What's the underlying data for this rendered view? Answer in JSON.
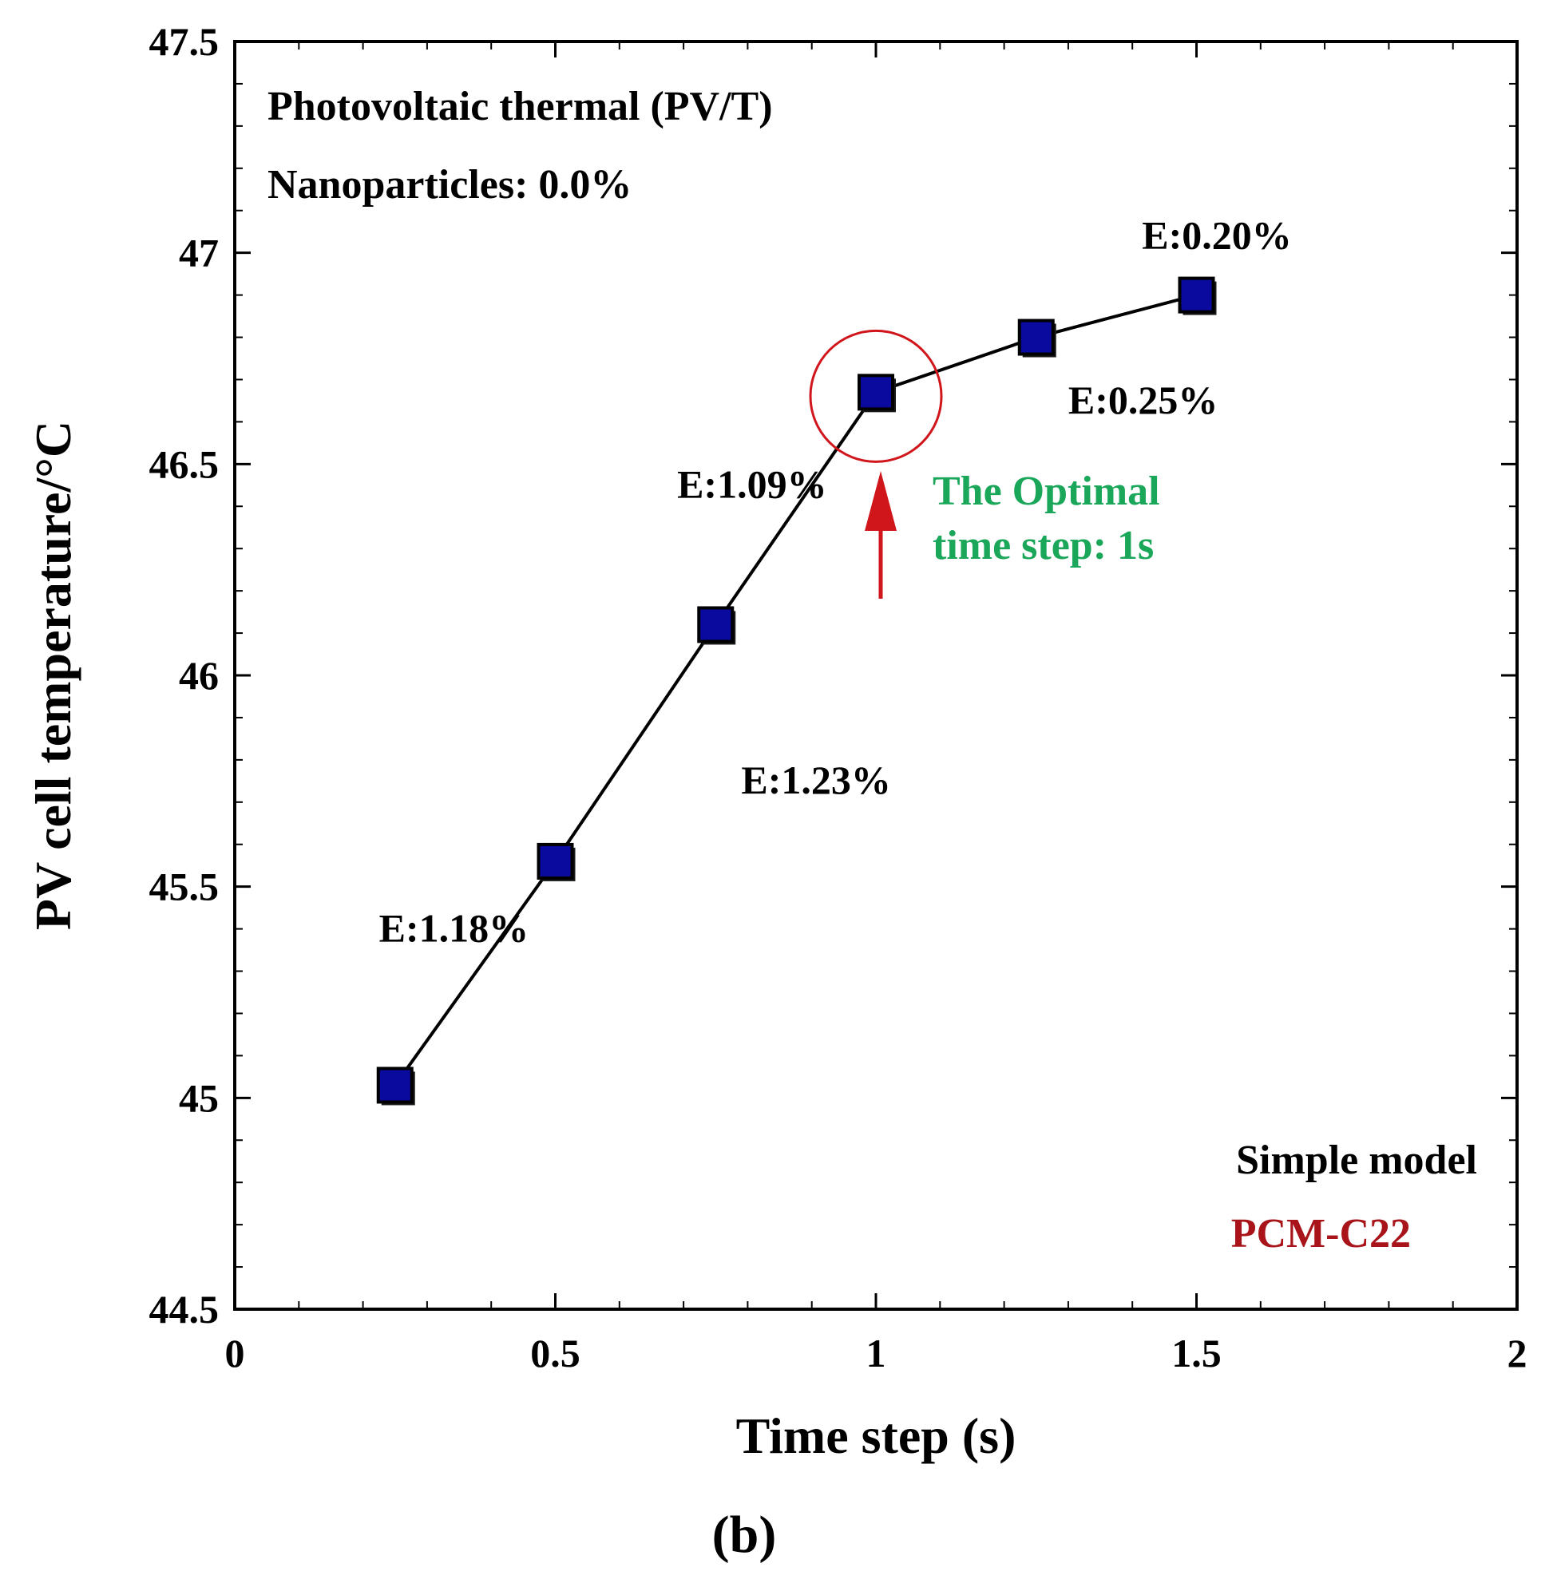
{
  "chart_data": {
    "type": "line",
    "title": "",
    "xlabel": "Time step (s)",
    "ylabel": "PV cell temperature/°C",
    "xlim": [
      0,
      2
    ],
    "ylim": [
      44.5,
      47.5
    ],
    "x_ticks": [
      "0",
      "0.5",
      "1",
      "1.5",
      "2"
    ],
    "y_ticks": [
      "44.5",
      "45",
      "45.5",
      "46",
      "46.5",
      "47",
      "47.5"
    ],
    "grid": false,
    "series": [
      {
        "name": "PV cell temperature",
        "x": [
          0.25,
          0.5,
          0.75,
          1.0,
          1.25,
          1.5
        ],
        "y": [
          45.03,
          45.56,
          46.12,
          46.67,
          46.8,
          46.9
        ],
        "line_color": "#000000",
        "marker": "square",
        "marker_color": "#0a0a9e"
      }
    ],
    "error_labels": [
      {
        "text": "E:1.18%",
        "x": 0.225,
        "y": 45.37
      },
      {
        "text": "E:1.23%",
        "x": 0.79,
        "y": 45.72
      },
      {
        "text": "E:1.09%",
        "x": 0.69,
        "y": 46.42
      },
      {
        "text": "E:0.25%",
        "x": 1.3,
        "y": 46.62
      },
      {
        "text": "E:0.20%",
        "x": 1.415,
        "y": 47.01
      }
    ],
    "annotations": {
      "title_line1": "Photovoltaic thermal (PV/T)",
      "title_line2": "Nanoparticles: 0.0%",
      "optimal_line1": "The Optimal",
      "optimal_line2": "time step: 1s",
      "optimal_x": 1.0,
      "optimal_y": 46.67,
      "model_line1": "Simple model",
      "model_line2": "PCM-C22"
    },
    "subfigure_label": "(b)",
    "colors": {
      "optimal_text": "#1aa75a",
      "highlight": "#d0151b",
      "model_pcm": "#a8141a",
      "marker_fill": "#0a0a9e"
    }
  }
}
